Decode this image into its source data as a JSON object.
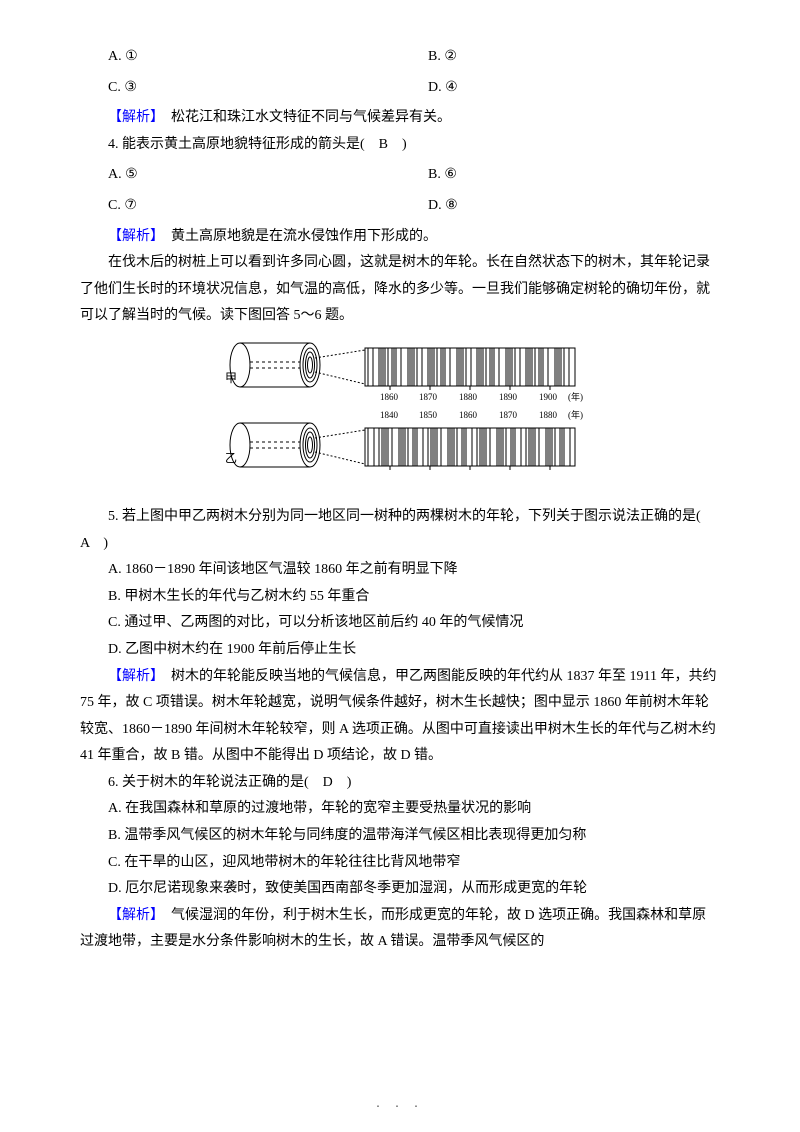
{
  "q3_options": {
    "A": "A.  ①",
    "B": "B.  ②",
    "C": "C.  ③",
    "D": "D.  ④"
  },
  "analysis_label": "【解析】　",
  "q3_analysis": "松花江和珠江水文特征不同与气候差异有关。",
  "q4_stem": "4.  能表示黄土高原地貌特征形成的箭头是(　B　)",
  "q4_options": {
    "A": "A.  ⑤",
    "B": "B.  ⑥",
    "C": "C.  ⑦",
    "D": "D.  ⑧"
  },
  "q4_analysis": "黄土高原地貌是在流水侵蚀作用下形成的。",
  "context_5_6": "在伐木后的树桩上可以看到许多同心圆，这就是树木的年轮。长在自然状态下的树木，其年轮记录了他们生长时的环境状况信息，如气温的高低，降水的多少等。一旦我们能够确定树轮的确切年份，就可以了解当时的气候。读下图回答 5～6 题。",
  "diagram": {
    "label_jia": "甲",
    "label_yi": "乙",
    "x_ticks_top": [
      "1860",
      "1870",
      "1880",
      "1890",
      "1900"
    ],
    "x_unit_top": "(年)",
    "x_ticks_bot": [
      "1840",
      "1850",
      "1860",
      "1870",
      "1880"
    ],
    "x_unit_bot": "(年)",
    "colors": {
      "stroke": "#000000",
      "fill": "#ffffff"
    },
    "font_size_labels": 10
  },
  "q5_stem": "5.  若上图中甲乙两树木分别为同一地区同一树种的两棵树木的年轮，下列关于图示说法正确的是(　A　)",
  "q5_options": {
    "A": "A.  1860－1890 年间该地区气温较 1860 年之前有明显下降",
    "B": "B.  甲树木生长的年代与乙树木约 55 年重合",
    "C": "C.  通过甲、乙两图的对比，可以分析该地区前后约 40 年的气候情况",
    "D": "D.  乙图中树木约在 1900 年前后停止生长"
  },
  "q5_analysis": "树木的年轮能反映当地的气候信息，甲乙两图能反映的年代约从 1837 年至 1911 年，共约 75 年，故 C 项错误。树木年轮越宽，说明气候条件越好，树木生长越快；图中显示 1860 年前树木年轮较宽、1860－1890 年间树木年轮较窄，则 A 选项正确。从图中可直接读出甲树木生长的年代与乙树木约 41 年重合，故 B 错。从图中不能得出 D 项结论，故 D 错。",
  "q6_stem": "6.  关于树木的年轮说法正确的是(　D　)",
  "q6_options": {
    "A": "A.  在我国森林和草原的过渡地带，年轮的宽窄主要受热量状况的影响",
    "B": "B.  温带季风气候区的树木年轮与同纬度的温带海洋气候区相比表现得更加匀称",
    "C": "C.  在干旱的山区，迎风地带树木的年轮往往比背风地带窄",
    "D": "D.  厄尔尼诺现象来袭时，致使美国西南部冬季更加湿润，从而形成更宽的年轮"
  },
  "q6_analysis": "气候湿润的年份，利于树木生长，而形成更宽的年轮，故 D 选项正确。我国森林和草原过渡地带，主要是水分条件影响树木的生长，故 A 错误。温带季风气候区的"
}
